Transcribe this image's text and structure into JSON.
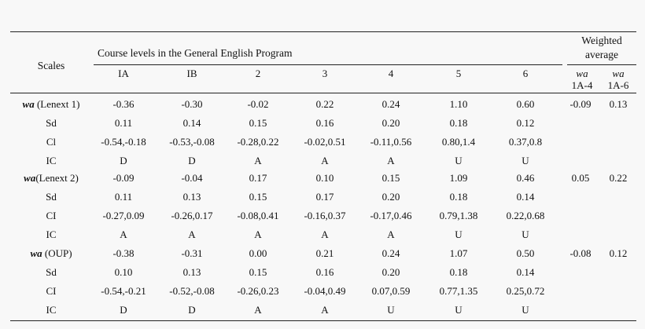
{
  "table": {
    "header": {
      "scales": "Scales",
      "course_levels": "Course levels in the General English Program",
      "weighted_average": [
        "Weighted",
        "average"
      ],
      "levels": [
        "IA",
        "IB",
        "2",
        "3",
        "4",
        "5",
        "6"
      ],
      "wa_cols": [
        {
          "prefix": "wa",
          "range": "1A-4"
        },
        {
          "prefix": "wa",
          "range": "1A-6"
        }
      ]
    },
    "rows": [
      {
        "label_bi": "wa",
        "label_rest": " (Lenext 1)",
        "cells": [
          "-0.36",
          "-0.30",
          "-0.02",
          "0.22",
          "0.24",
          "1.10",
          "0.60"
        ],
        "wa4": "-0.09",
        "wa6": "0.13"
      },
      {
        "label": "Sd",
        "cells": [
          "0.11",
          "0.14",
          "0.15",
          "0.16",
          "0.20",
          "0.18",
          "0.12"
        ],
        "wa4": "",
        "wa6": ""
      },
      {
        "label": "Cl",
        "cells": [
          "-0.54,-0.18",
          "-0.53,-0.08",
          "-0.28,0.22",
          "-0.02,0.51",
          "-0.11,0.56",
          "0.80,1.4",
          "0.37,0.8"
        ],
        "wa4": "",
        "wa6": ""
      },
      {
        "label": "IC",
        "cells": [
          "D",
          "D",
          "A",
          "A",
          "A",
          "U",
          "U"
        ],
        "wa4": "",
        "wa6": ""
      },
      {
        "label_bi": "wa",
        "label_rest": "(Lenext  2)",
        "cells": [
          "-0.09",
          "-0.04",
          "0.17",
          "0.10",
          "0.15",
          "1.09",
          "0.46"
        ],
        "wa4": "0.05",
        "wa6": "0.22"
      },
      {
        "label": "Sd",
        "cells": [
          "0.11",
          "0.13",
          "0.15",
          "0.17",
          "0.20",
          "0.18",
          "0.14"
        ],
        "wa4": "",
        "wa6": ""
      },
      {
        "label": "CI",
        "cells": [
          "-0.27,0.09",
          "-0.26,0.17",
          "-0.08,0.41",
          "-0.16,0.37",
          "-0.17,0.46",
          "0.79,1.38",
          "0.22,0.68"
        ],
        "wa4": "",
        "wa6": ""
      },
      {
        "label": "IC",
        "cells": [
          "A",
          "A",
          "A",
          "A",
          "A",
          "U",
          "U"
        ],
        "wa4": "",
        "wa6": ""
      },
      {
        "label_bi": "wa",
        "label_rest": " (OUP)",
        "cells": [
          "-0.38",
          "-0.31",
          "0.00",
          "0.21",
          "0.24",
          "1.07",
          "0.50"
        ],
        "wa4": "-0.08",
        "wa6": "0.12"
      },
      {
        "label": "Sd",
        "cells": [
          "0.10",
          "0.13",
          "0.15",
          "0.16",
          "0.20",
          "0.18",
          "0.14"
        ],
        "wa4": "",
        "wa6": ""
      },
      {
        "label": "CI",
        "cells": [
          "-0.54,-0.21",
          "-0.52,-0.08",
          "-0.26,0.23",
          "-0.04,0.49",
          "0.07,0.59",
          "0.77,1.35",
          "0.25,0.72"
        ],
        "wa4": "",
        "wa6": ""
      },
      {
        "label": "IC",
        "cells": [
          "D",
          "D",
          "A",
          "A",
          "U",
          "U",
          "U"
        ],
        "wa4": "",
        "wa6": ""
      }
    ]
  }
}
